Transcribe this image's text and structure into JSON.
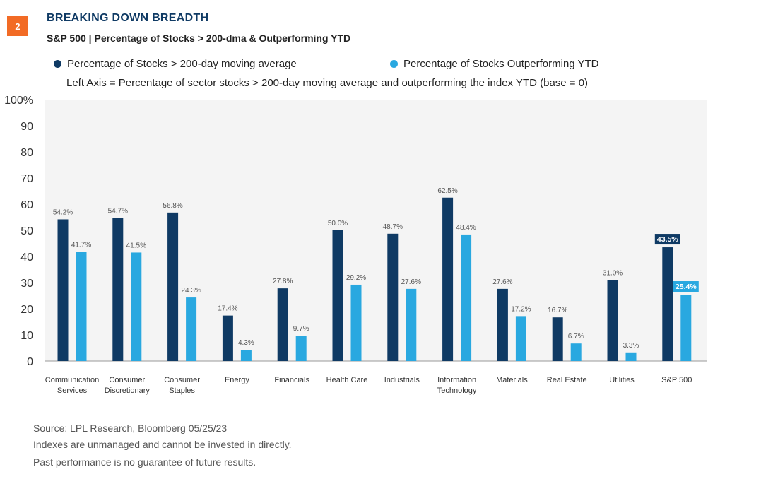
{
  "header": {
    "badge": "2",
    "title": "BREAKING DOWN BREADTH",
    "subtitle": "S&P 500 | Percentage of Stocks > 200-dma & Outperforming YTD",
    "axis_note": "Left Axis = Percentage of sector stocks > 200-day moving average and outperforming the index YTD (base = 0)"
  },
  "colors": {
    "badge": "#f26b25",
    "title": "#0f3a64",
    "series1": "#0f3a64",
    "series2": "#29a8e0",
    "plot_bg": "#f4f4f4"
  },
  "chart_data": {
    "type": "bar",
    "categories": [
      [
        "Communication",
        "Services"
      ],
      [
        "Consumer",
        "Discretionary"
      ],
      [
        "Consumer",
        "Staples"
      ],
      [
        "Energy"
      ],
      [
        "Financials"
      ],
      [
        "Health Care"
      ],
      [
        "Industrials"
      ],
      [
        "Information",
        "Technology"
      ],
      [
        "Materials"
      ],
      [
        "Real Estate"
      ],
      [
        "Utilities"
      ],
      [
        "S&P 500"
      ]
    ],
    "series": [
      {
        "name": "Percentage of Stocks > 200-day moving average",
        "values": [
          54.2,
          54.7,
          56.8,
          17.4,
          27.8,
          50.0,
          48.7,
          62.5,
          27.6,
          16.7,
          31.0,
          43.5
        ],
        "labels": [
          "54.2%",
          "54.7%",
          "56.8%",
          "17.4%",
          "27.8%",
          "50.0%",
          "48.7%",
          "62.5%",
          "27.6%",
          "16.7%",
          "31.0%",
          "43.5%"
        ]
      },
      {
        "name": "Percentage of Stocks Outperforming YTD",
        "values": [
          41.7,
          41.5,
          24.3,
          4.3,
          9.7,
          29.2,
          27.6,
          48.4,
          17.2,
          6.7,
          3.3,
          25.4
        ],
        "labels": [
          "41.7%",
          "41.5%",
          "24.3%",
          "4.3%",
          "9.7%",
          "29.2%",
          "27.6%",
          "48.4%",
          "17.2%",
          "6.7%",
          "3.3%",
          "25.4%"
        ]
      }
    ],
    "highlighted_category": "S&P 500",
    "ylim": [
      0,
      100
    ],
    "yticks": [
      0,
      10,
      20,
      30,
      40,
      50,
      60,
      70,
      80,
      90,
      100
    ],
    "ytick_labels": [
      "0",
      "10",
      "20",
      "30",
      "40",
      "50",
      "60",
      "70",
      "80",
      "90",
      "100%"
    ],
    "grid": false,
    "legend_position": "top"
  },
  "footer": {
    "source": "Source: LPL Research, Bloomberg  05/25/23",
    "note1": "Indexes are unmanaged and cannot be invested in directly.",
    "note2": "Past performance is no guarantee of future results."
  }
}
